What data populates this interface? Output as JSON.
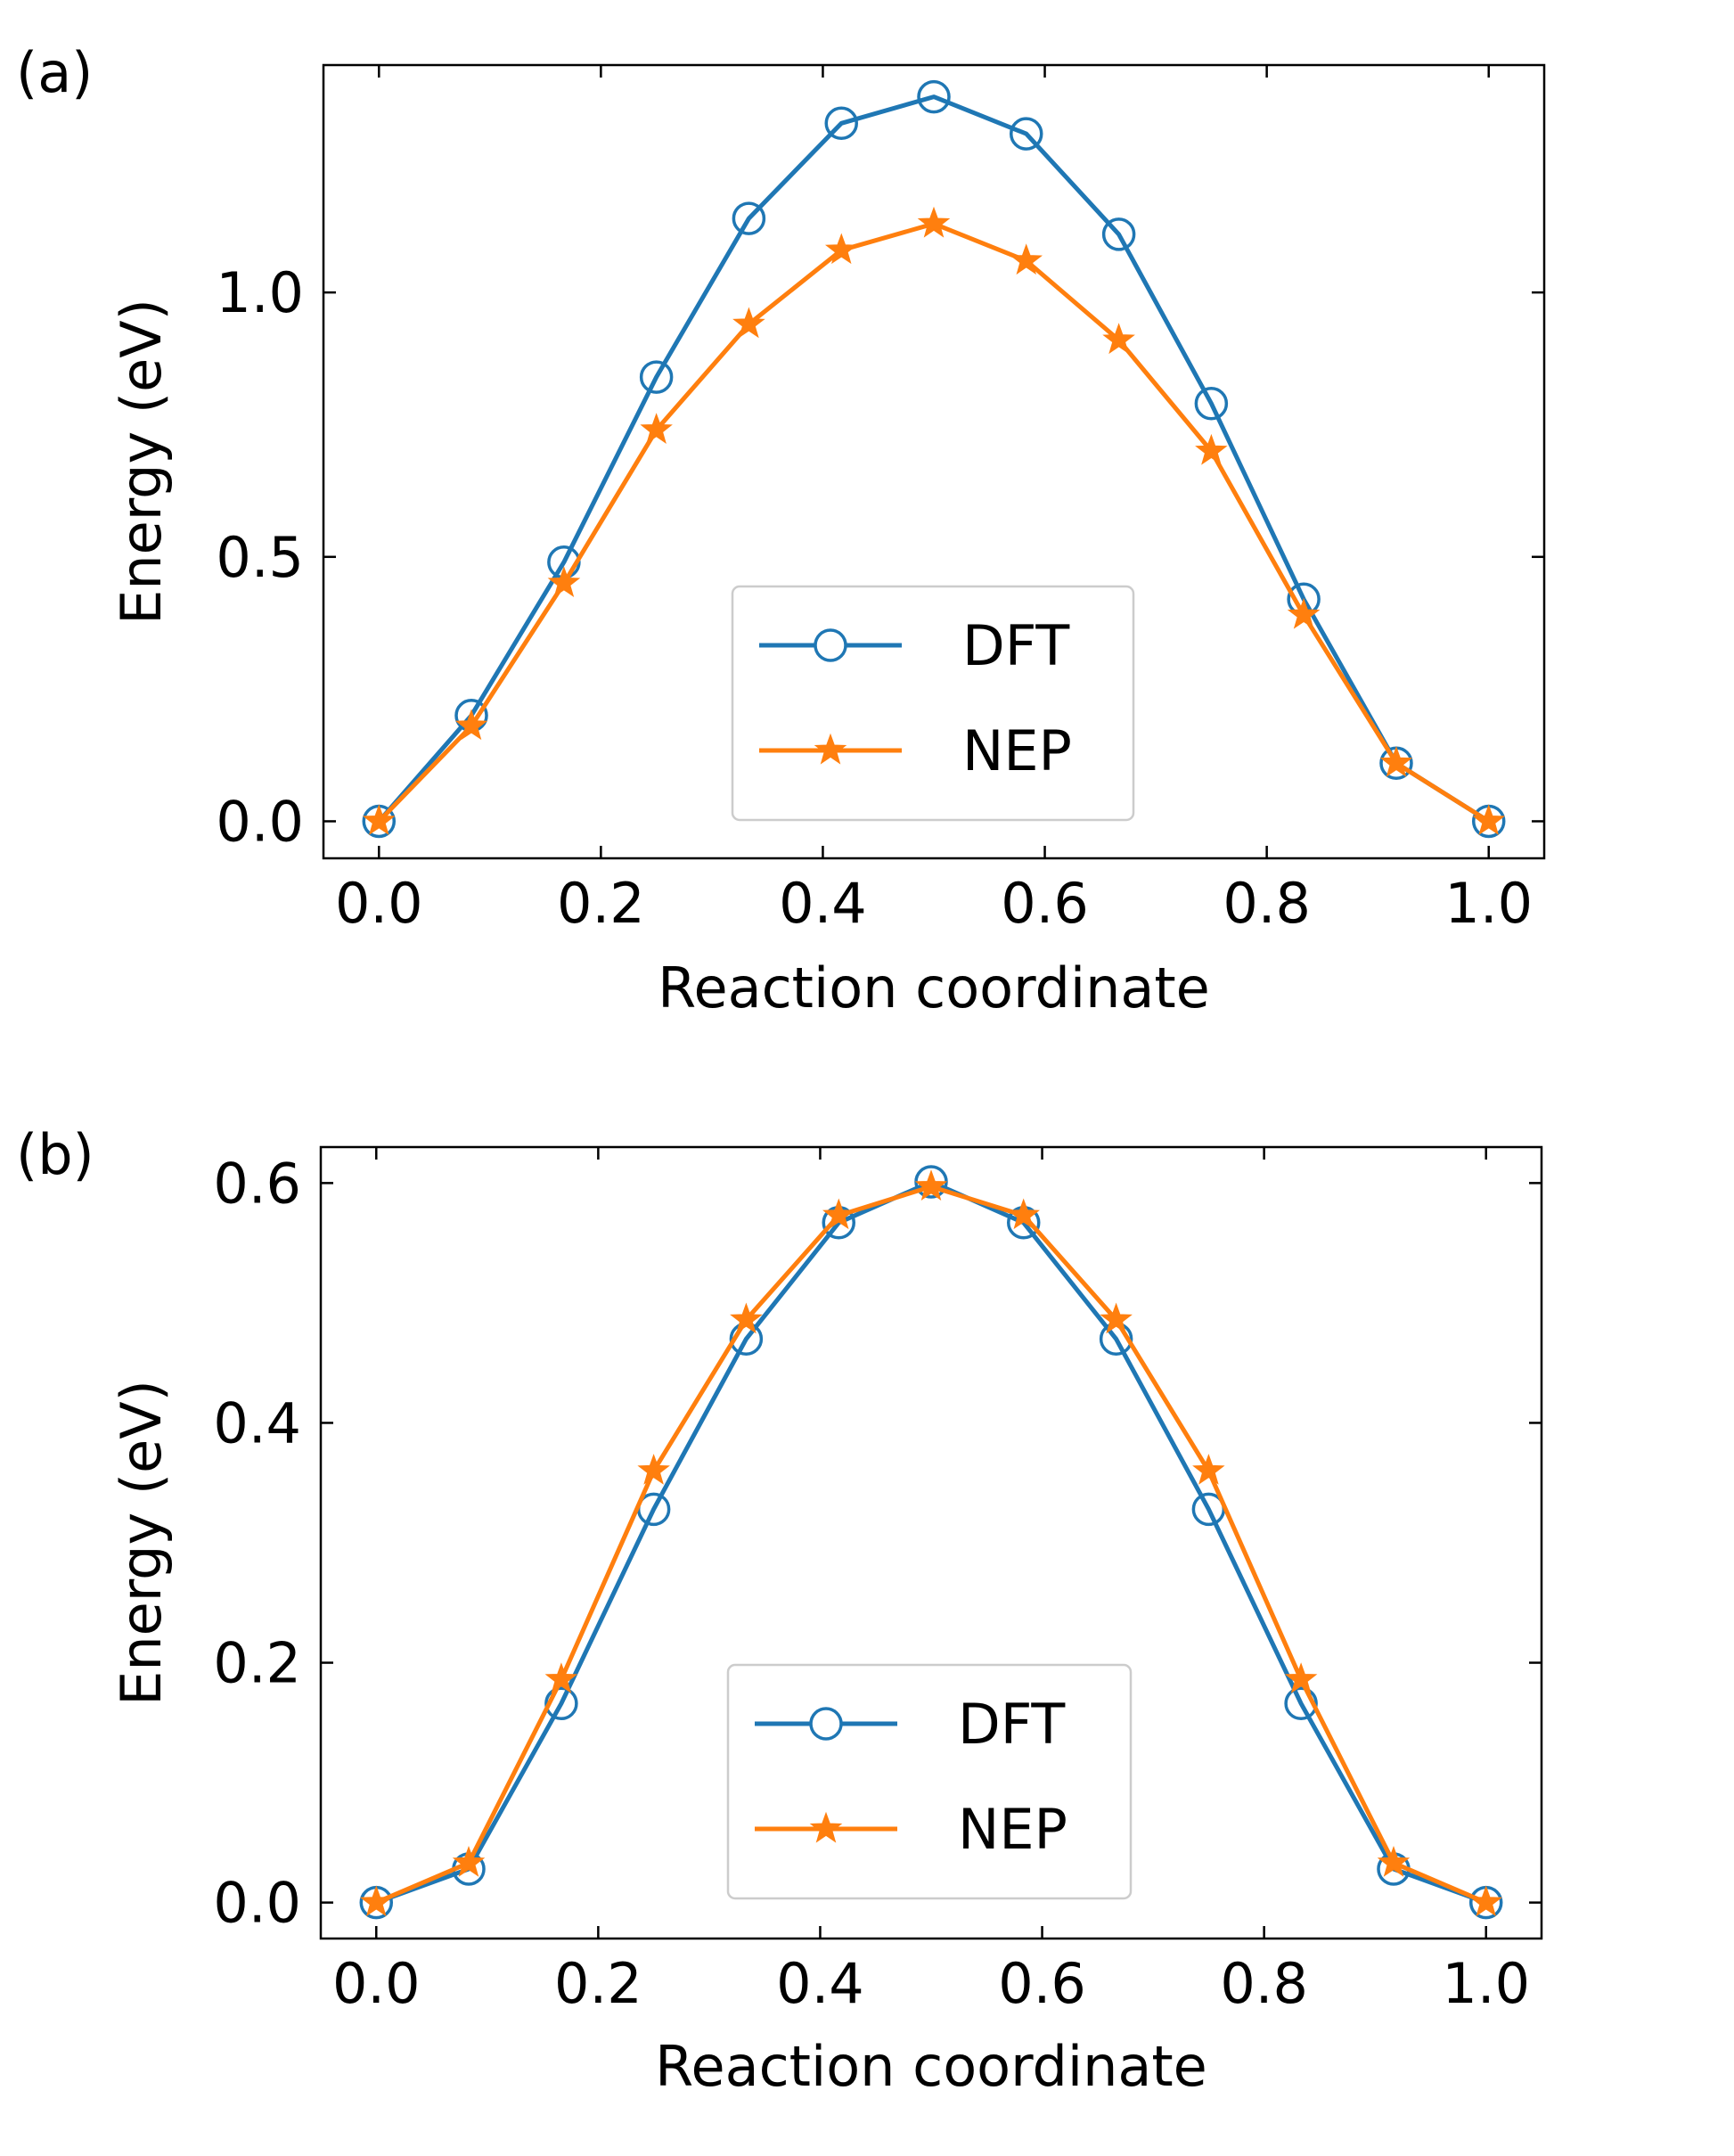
{
  "chart_data": [
    {
      "type": "line",
      "panel_label": "(a)",
      "xlabel": "Reaction coordinate",
      "ylabel": "Energy (eV)",
      "xlim": [
        -0.05,
        1.05
      ],
      "ylim": [
        -0.07,
        1.43
      ],
      "xticks": [
        0.0,
        0.2,
        0.4,
        0.6,
        0.8,
        1.0
      ],
      "xtick_labels": [
        "0.0",
        "0.2",
        "0.4",
        "0.6",
        "0.8",
        "1.0"
      ],
      "yticks": [
        0.0,
        0.5,
        1.0
      ],
      "ytick_labels": [
        "0.0",
        "0.5",
        "1.0"
      ],
      "grid": false,
      "legend": "lower center",
      "x": [
        0.0,
        0.0833,
        0.1667,
        0.25,
        0.3333,
        0.4167,
        0.5,
        0.5833,
        0.6667,
        0.75,
        0.8333,
        0.9167,
        1.0
      ],
      "series": [
        {
          "name": "DFT",
          "color": "#1f77b4",
          "marker": "circle",
          "values": [
            0.0,
            0.2,
            0.49,
            0.84,
            1.14,
            1.32,
            1.37,
            1.3,
            1.11,
            0.79,
            0.42,
            0.11,
            0.0
          ]
        },
        {
          "name": "NEP",
          "color": "#ff7f0e",
          "marker": "star",
          "values": [
            0.0,
            0.18,
            0.45,
            0.74,
            0.94,
            1.08,
            1.13,
            1.06,
            0.91,
            0.7,
            0.39,
            0.11,
            0.0
          ]
        }
      ]
    },
    {
      "type": "line",
      "panel_label": "(b)",
      "xlabel": "Reaction coordinate",
      "ylabel": "Energy (eV)",
      "xlim": [
        -0.05,
        1.05
      ],
      "ylim": [
        -0.03,
        0.63
      ],
      "xticks": [
        0.0,
        0.2,
        0.4,
        0.6,
        0.8,
        1.0
      ],
      "xtick_labels": [
        "0.0",
        "0.2",
        "0.4",
        "0.6",
        "0.8",
        "1.0"
      ],
      "yticks": [
        0.0,
        0.2,
        0.4,
        0.6
      ],
      "ytick_labels": [
        "0.0",
        "0.2",
        "0.4",
        "0.6"
      ],
      "grid": false,
      "legend": "lower center",
      "x": [
        0.0,
        0.0833,
        0.1667,
        0.25,
        0.3333,
        0.4167,
        0.5,
        0.5833,
        0.6667,
        0.75,
        0.8333,
        0.9167,
        1.0
      ],
      "series": [
        {
          "name": "DFT",
          "color": "#1f77b4",
          "marker": "circle",
          "values": [
            0.0,
            0.028,
            0.166,
            0.328,
            0.47,
            0.567,
            0.601,
            0.567,
            0.47,
            0.328,
            0.166,
            0.028,
            0.0
          ]
        },
        {
          "name": "NEP",
          "color": "#ff7f0e",
          "marker": "star",
          "values": [
            0.0,
            0.033,
            0.186,
            0.36,
            0.486,
            0.573,
            0.597,
            0.573,
            0.486,
            0.36,
            0.186,
            0.033,
            0.0
          ]
        }
      ]
    }
  ]
}
